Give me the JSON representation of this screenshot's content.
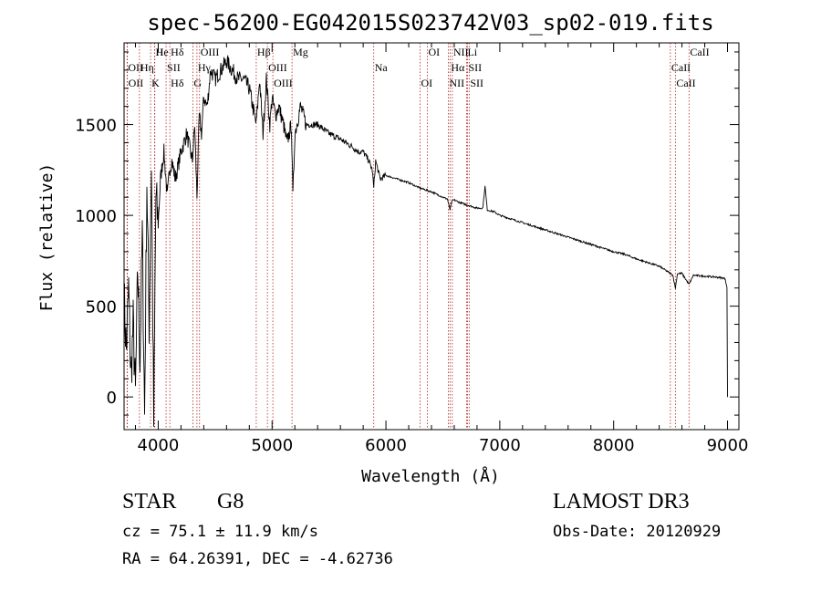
{
  "chart_data": {
    "type": "line",
    "title": "spec-56200-EG042015S023742V03_sp02-019.fits",
    "xlabel": "Wavelength (Å)",
    "ylabel": "Flux (relative)",
    "xlim": [
      3700,
      9100
    ],
    "ylim": [
      -180,
      1950
    ],
    "xticks": [
      4000,
      5000,
      6000,
      7000,
      8000,
      9000
    ],
    "yticks": [
      0,
      500,
      1000,
      1500
    ],
    "grid": false,
    "series": [
      {
        "name": "flux",
        "x": [
          3700,
          3720,
          3740,
          3760,
          3780,
          3800,
          3820,
          3840,
          3860,
          3880,
          3900,
          3920,
          3940,
          3960,
          3980,
          4000,
          4020,
          4050,
          4080,
          4100,
          4120,
          4150,
          4200,
          4250,
          4300,
          4320,
          4340,
          4360,
          4380,
          4400,
          4430,
          4460,
          4500,
          4550,
          4600,
          4650,
          4700,
          4750,
          4800,
          4830,
          4861,
          4890,
          4920,
          4950,
          4980,
          5000,
          5030,
          5060,
          5100,
          5130,
          5170,
          5183,
          5200,
          5250,
          5300,
          5400,
          5500,
          5600,
          5700,
          5760,
          5800,
          5850,
          5880,
          5893,
          5910,
          5950,
          6000,
          6100,
          6200,
          6300,
          6400,
          6500,
          6540,
          6563,
          6580,
          6600,
          6650,
          6700,
          6800,
          6850,
          6870,
          6890,
          6950,
          7000,
          7100,
          7200,
          7300,
          7400,
          7500,
          7600,
          7700,
          7800,
          7900,
          8000,
          8100,
          8200,
          8300,
          8400,
          8450,
          8500,
          8520,
          8542,
          8560,
          8600,
          8662,
          8700,
          8800,
          8900,
          8960,
          8980,
          8995,
          9000
        ],
        "y": [
          550,
          250,
          600,
          100,
          400,
          0,
          700,
          200,
          900,
          -100,
          1200,
          400,
          1300,
          -150,
          1100,
          950,
          1200,
          1350,
          1100,
          1250,
          1300,
          1200,
          1350,
          1450,
          1300,
          1500,
          1100,
          1550,
          1450,
          1650,
          1600,
          1800,
          1750,
          1800,
          1850,
          1800,
          1750,
          1750,
          1700,
          1600,
          1500,
          1750,
          1450,
          1750,
          1500,
          1650,
          1550,
          1600,
          1500,
          1400,
          1500,
          1100,
          1450,
          1600,
          1500,
          1500,
          1450,
          1420,
          1380,
          1350,
          1350,
          1300,
          1250,
          1150,
          1300,
          1200,
          1220,
          1200,
          1180,
          1150,
          1130,
          1100,
          1090,
          1030,
          1080,
          1085,
          1070,
          1060,
          1040,
          1040,
          1160,
          1030,
          1020,
          1000,
          980,
          960,
          940,
          920,
          900,
          880,
          860,
          840,
          820,
          800,
          785,
          760,
          740,
          720,
          700,
          680,
          670,
          600,
          680,
          680,
          620,
          670,
          665,
          660,
          655,
          650,
          600,
          0
        ]
      }
    ],
    "line_labels": [
      {
        "name": "Hδ",
        "x": 4102
      },
      {
        "name": "OII",
        "x": 3727
      },
      {
        "name": "OII",
        "x": 3729
      },
      {
        "name": "He",
        "x": 3970
      },
      {
        "name": "Hη",
        "x": 3835
      },
      {
        "name": "K",
        "x": 3933
      },
      {
        "name": "H",
        "x": 3968
      },
      {
        "name": "SII",
        "x": 4069
      },
      {
        "name": "Hδ",
        "x": 4102
      },
      {
        "name": "OIII",
        "x": 4363
      },
      {
        "name": "Hγ",
        "x": 4340
      },
      {
        "name": "G",
        "x": 4304
      },
      {
        "name": "Hβ",
        "x": 4861
      },
      {
        "name": "OIII",
        "x": 4959
      },
      {
        "name": "OIII",
        "x": 5007
      },
      {
        "name": "Mg",
        "x": 5175
      },
      {
        "name": "Na",
        "x": 5893
      },
      {
        "name": "OI",
        "x": 6300
      },
      {
        "name": "OI",
        "x": 6364
      },
      {
        "name": "Hα",
        "x": 6563
      },
      {
        "name": "NII",
        "x": 6548
      },
      {
        "name": "NII",
        "x": 6583
      },
      {
        "name": "SII",
        "x": 6716
      },
      {
        "name": "SII",
        "x": 6731
      },
      {
        "name": "Li",
        "x": 6708
      },
      {
        "name": "CaII",
        "x": 8498
      },
      {
        "name": "CaII",
        "x": 8542
      },
      {
        "name": "CaII",
        "x": 8662
      }
    ]
  },
  "info": {
    "classification": "STAR",
    "subclass": "G8",
    "survey": "LAMOST DR3",
    "redshift_line": "cz = 75.1 ± 11.9 km/s",
    "obs_date": "Obs-Date: 20120929",
    "coords": "RA =  64.26391, DEC =  -4.62736"
  }
}
